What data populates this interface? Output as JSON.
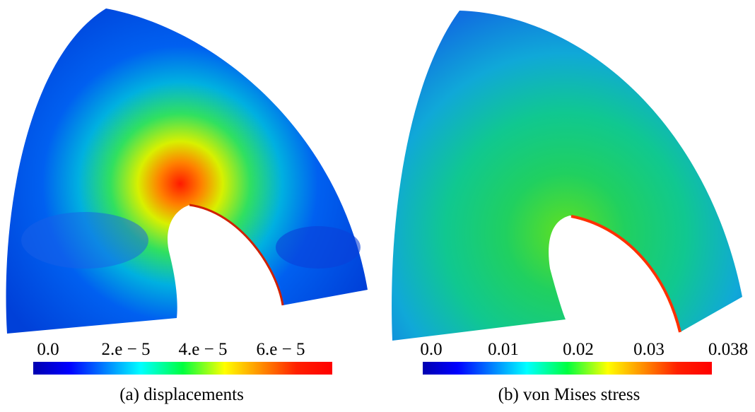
{
  "panels": [
    {
      "colorbar": {
        "labels": [
          "0.0",
          "2.e − 5",
          "4.e − 5",
          "6.e − 5"
        ]
      },
      "caption": "(a) displacements"
    },
    {
      "colorbar": {
        "labels": [
          "0.0",
          "0.01",
          "0.02",
          "0.03",
          "0.038"
        ]
      },
      "caption": "(b) von Mises stress"
    }
  ]
}
